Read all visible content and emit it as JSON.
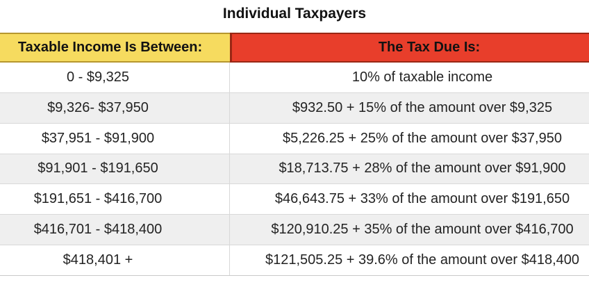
{
  "title": "Individual Taxpayers",
  "colors": {
    "income_header_bg": "#F6DB5F",
    "income_header_border": "#B6972E",
    "tax_header_bg": "#E83E2B",
    "tax_header_border": "#992715",
    "row_alt_bg": "#EFEFEF",
    "row_divider": "#D8D8D8"
  },
  "table": {
    "columns": [
      {
        "label": "Taxable Income Is Between:"
      },
      {
        "label": "The Tax Due Is:"
      }
    ],
    "rows": [
      {
        "income": "0 - $9,325",
        "tax": "10% of taxable income"
      },
      {
        "income": "$9,326- $37,950",
        "tax": "$932.50 + 15% of the amount over $9,325"
      },
      {
        "income": "$37,951 - $91,900",
        "tax": "$5,226.25 + 25% of the amount over $37,950"
      },
      {
        "income": "$91,901 - $191,650",
        "tax": "$18,713.75 + 28% of the amount over $91,900"
      },
      {
        "income": "$191,651 - $416,700",
        "tax": "$46,643.75 + 33% of the amount over $191,650"
      },
      {
        "income": "$416,701 - $418,400",
        "tax": "$120,910.25 + 35% of the amount over $416,700"
      },
      {
        "income": "$418,401 +",
        "tax": "$121,505.25 + 39.6%  of the amount over $418,400"
      }
    ]
  },
  "chart_data": {
    "type": "table",
    "title": "Individual Taxpayers",
    "columns": [
      "Taxable Income Is Between:",
      "The Tax Due Is:"
    ],
    "rows": [
      [
        "0 - $9,325",
        "10% of taxable income"
      ],
      [
        "$9,326- $37,950",
        "$932.50 + 15% of the amount over $9,325"
      ],
      [
        "$37,951 - $91,900",
        "$5,226.25 + 25% of the amount over $37,950"
      ],
      [
        "$91,901 - $191,650",
        "$18,713.75 + 28% of the amount over $91,900"
      ],
      [
        "$191,651 - $416,700",
        "$46,643.75 + 33% of the amount over $191,650"
      ],
      [
        "$416,701 - $418,400",
        "$120,910.25 + 35% of the amount over $416,700"
      ],
      [
        "$418,401 +",
        "$121,505.25 + 39.6%  of the amount over $418,400"
      ]
    ]
  }
}
